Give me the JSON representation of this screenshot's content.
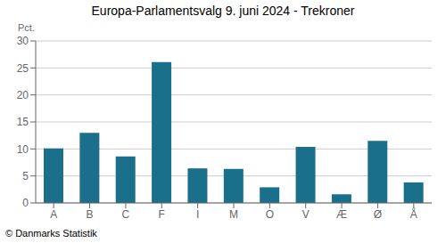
{
  "chart_data": {
    "type": "bar",
    "title": "Europa-Parlamentsvalg 9. juni 2024 - Trekroner",
    "ylabel": "Pct.",
    "annotations": [
      "© Danmarks Statistik"
    ],
    "categories": [
      "A",
      "B",
      "C",
      "F",
      "I",
      "M",
      "O",
      "V",
      "Æ",
      "Ø",
      "Å"
    ],
    "values": [
      10.1,
      13.0,
      8.6,
      26.1,
      6.4,
      6.3,
      2.9,
      10.4,
      1.6,
      11.5,
      3.8
    ],
    "color": "#1a6f8a",
    "ylim": [
      0,
      30
    ],
    "yticks": [
      0,
      5,
      10,
      15,
      20,
      25,
      30
    ],
    "grid": true
  }
}
